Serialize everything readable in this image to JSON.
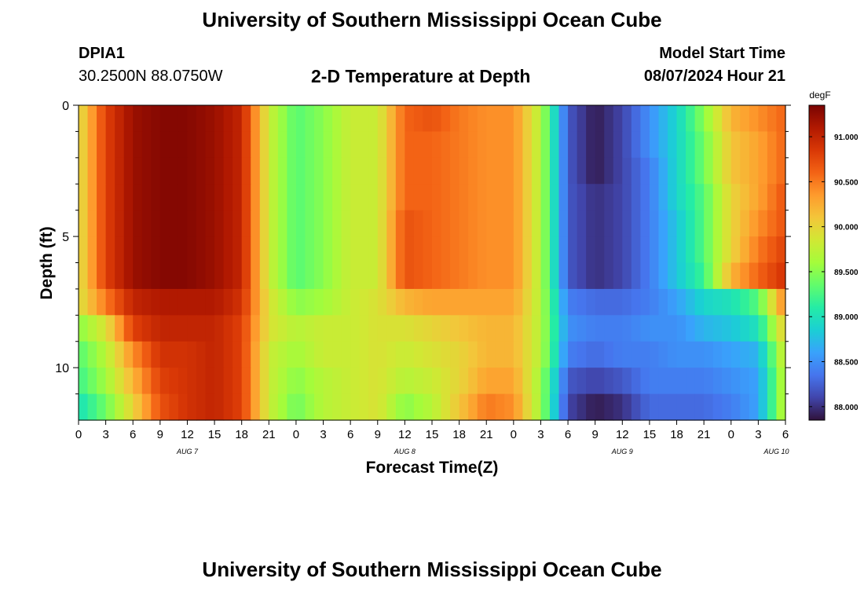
{
  "header": {
    "title": "University of Southern Mississippi Ocean Cube",
    "station_id": "DPIA1",
    "station_coords": "30.2500N  88.0750W",
    "plot_title": "2-D Temperature at Depth",
    "model_start_label": "Model Start Time",
    "model_start_value": "08/07/2024 Hour 21"
  },
  "footer": {
    "title": "University of Southern Mississippi Ocean Cube"
  },
  "chart_data": {
    "type": "heatmap",
    "title": "2-D Temperature at Depth",
    "xlabel": "Forecast Time(Z)",
    "ylabel": "Depth (ft)",
    "x_hours_range": [
      0,
      78
    ],
    "x_ticks": [
      {
        "h": 0,
        "label": "0"
      },
      {
        "h": 3,
        "label": "3"
      },
      {
        "h": 6,
        "label": "6"
      },
      {
        "h": 9,
        "label": "9"
      },
      {
        "h": 12,
        "label": "12"
      },
      {
        "h": 15,
        "label": "15"
      },
      {
        "h": 18,
        "label": "18"
      },
      {
        "h": 21,
        "label": "21"
      },
      {
        "h": 24,
        "label": "0"
      },
      {
        "h": 27,
        "label": "3"
      },
      {
        "h": 30,
        "label": "6"
      },
      {
        "h": 33,
        "label": "9"
      },
      {
        "h": 36,
        "label": "12"
      },
      {
        "h": 39,
        "label": "15"
      },
      {
        "h": 42,
        "label": "18"
      },
      {
        "h": 45,
        "label": "21"
      },
      {
        "h": 48,
        "label": "0"
      },
      {
        "h": 51,
        "label": "3"
      },
      {
        "h": 54,
        "label": "6"
      },
      {
        "h": 57,
        "label": "9"
      },
      {
        "h": 60,
        "label": "12"
      },
      {
        "h": 63,
        "label": "15"
      },
      {
        "h": 66,
        "label": "18"
      },
      {
        "h": 69,
        "label": "21"
      },
      {
        "h": 72,
        "label": "0"
      },
      {
        "h": 75,
        "label": "3"
      },
      {
        "h": 78,
        "label": "6"
      }
    ],
    "date_labels": [
      {
        "h": 12,
        "label": "AUG 7"
      },
      {
        "h": 36,
        "label": "AUG 8"
      },
      {
        "h": 60,
        "label": "AUG 9"
      },
      {
        "h": 77,
        "label": "AUG 10"
      }
    ],
    "y_range": [
      0,
      12
    ],
    "y_ticks": [
      0,
      5,
      10
    ],
    "y_minor_ticks": [
      1,
      2,
      3,
      4,
      6,
      7,
      8,
      9,
      11
    ],
    "depth_rows": [
      0.5,
      1.5,
      2.5,
      3.5,
      4.5,
      5.5,
      6.5,
      7.5,
      8.5,
      9.5,
      10.5,
      11.5
    ],
    "time_keys": [
      0,
      3,
      6,
      9,
      12,
      15,
      18,
      21,
      24,
      27,
      30,
      33,
      36,
      39,
      42,
      45,
      48,
      51,
      54,
      57,
      60,
      63,
      66,
      69,
      72,
      75,
      78
    ],
    "temps_by_depth": [
      [
        89.9,
        90.8,
        91.2,
        91.3,
        91.3,
        91.2,
        91.0,
        89.8,
        89.3,
        89.5,
        89.8,
        89.8,
        90.6,
        90.7,
        90.5,
        90.4,
        90.4,
        89.7,
        88.2,
        87.9,
        88.1,
        88.5,
        88.9,
        89.5,
        90.2,
        90.4,
        90.6
      ],
      [
        89.9,
        90.8,
        91.2,
        91.3,
        91.3,
        91.2,
        91.0,
        89.8,
        89.3,
        89.5,
        89.8,
        89.8,
        90.6,
        90.6,
        90.5,
        90.4,
        90.4,
        89.7,
        88.2,
        87.9,
        88.1,
        88.5,
        88.9,
        89.4,
        90.1,
        90.3,
        90.6
      ],
      [
        89.9,
        90.8,
        91.2,
        91.3,
        91.3,
        91.2,
        91.0,
        89.8,
        89.3,
        89.5,
        89.8,
        89.8,
        90.6,
        90.6,
        90.5,
        90.4,
        90.4,
        89.7,
        88.2,
        87.9,
        88.1,
        88.4,
        88.9,
        89.4,
        90.1,
        90.3,
        90.6
      ],
      [
        89.9,
        90.8,
        91.2,
        91.3,
        91.3,
        91.2,
        91.0,
        89.8,
        89.3,
        89.5,
        89.8,
        89.8,
        90.6,
        90.6,
        90.5,
        90.4,
        90.4,
        89.7,
        88.2,
        88.0,
        88.1,
        88.4,
        88.9,
        89.3,
        90.0,
        90.3,
        90.7
      ],
      [
        89.9,
        90.8,
        91.2,
        91.3,
        91.3,
        91.2,
        91.0,
        89.8,
        89.3,
        89.5,
        89.8,
        89.8,
        90.7,
        90.6,
        90.5,
        90.4,
        90.4,
        89.7,
        88.2,
        88.0,
        88.1,
        88.4,
        88.8,
        89.3,
        90.0,
        90.4,
        90.7
      ],
      [
        89.9,
        90.8,
        91.2,
        91.3,
        91.3,
        91.2,
        91.0,
        89.8,
        89.3,
        89.5,
        89.8,
        89.8,
        90.7,
        90.6,
        90.5,
        90.4,
        90.4,
        89.7,
        88.2,
        88.0,
        88.1,
        88.4,
        88.8,
        89.3,
        90.0,
        90.5,
        90.8
      ],
      [
        89.9,
        90.8,
        91.2,
        91.3,
        91.3,
        91.2,
        91.0,
        89.8,
        89.3,
        89.5,
        89.8,
        89.8,
        90.7,
        90.6,
        90.5,
        90.4,
        90.4,
        89.7,
        88.2,
        88.0,
        88.1,
        88.4,
        88.8,
        89.2,
        90.2,
        90.6,
        90.9
      ],
      [
        89.9,
        90.5,
        91.0,
        91.1,
        91.1,
        91.1,
        90.9,
        89.9,
        89.5,
        89.6,
        89.8,
        89.9,
        90.2,
        90.3,
        90.3,
        90.3,
        90.3,
        89.7,
        88.4,
        88.3,
        88.3,
        88.4,
        88.6,
        88.9,
        89.0,
        89.3,
        90.5
      ],
      [
        89.5,
        89.9,
        90.8,
        91.0,
        91.0,
        91.0,
        90.8,
        89.9,
        89.7,
        89.8,
        89.8,
        89.9,
        89.9,
        90.0,
        90.1,
        90.2,
        90.2,
        89.7,
        88.5,
        88.4,
        88.4,
        88.5,
        88.5,
        88.7,
        88.8,
        89.0,
        90.1
      ],
      [
        89.3,
        89.7,
        90.4,
        90.9,
        90.9,
        91.0,
        90.8,
        89.8,
        89.6,
        89.8,
        89.8,
        89.9,
        89.8,
        89.9,
        90.0,
        90.2,
        90.2,
        89.7,
        88.4,
        88.3,
        88.4,
        88.4,
        88.5,
        88.5,
        88.6,
        88.7,
        89.9
      ],
      [
        89.2,
        89.6,
        90.2,
        90.8,
        90.9,
        91.0,
        90.8,
        89.8,
        89.5,
        89.7,
        89.8,
        89.9,
        89.7,
        89.8,
        90.0,
        90.3,
        90.3,
        89.6,
        88.2,
        88.1,
        88.2,
        88.4,
        88.4,
        88.4,
        88.5,
        88.6,
        89.8
      ],
      [
        89.0,
        89.4,
        90.0,
        90.7,
        90.9,
        91.0,
        90.8,
        89.8,
        89.4,
        89.7,
        89.8,
        89.9,
        89.5,
        89.7,
        90.1,
        90.5,
        90.4,
        89.6,
        88.1,
        87.9,
        88.0,
        88.3,
        88.3,
        88.3,
        88.4,
        88.6,
        89.8
      ]
    ],
    "colorbar": {
      "unit": "degF",
      "range": [
        87.85,
        91.35
      ],
      "ticks": [
        88.0,
        88.5,
        89.0,
        89.5,
        90.0,
        90.5,
        91.0
      ],
      "tick_labels": [
        "88.000",
        "88.500",
        "89.000",
        "89.500",
        "90.000",
        "90.500",
        "91.000"
      ]
    },
    "colormap": [
      "#30123b",
      "#4145ab",
      "#4675ed",
      "#39a2fc",
      "#1bcfd4",
      "#24eca6",
      "#61fc6c",
      "#a4fc3b",
      "#d1e834",
      "#f3c63a",
      "#fe9b2d",
      "#f36315",
      "#d93806",
      "#b11901",
      "#7a0402"
    ],
    "grid": false,
    "legend": "colorbar-right"
  }
}
